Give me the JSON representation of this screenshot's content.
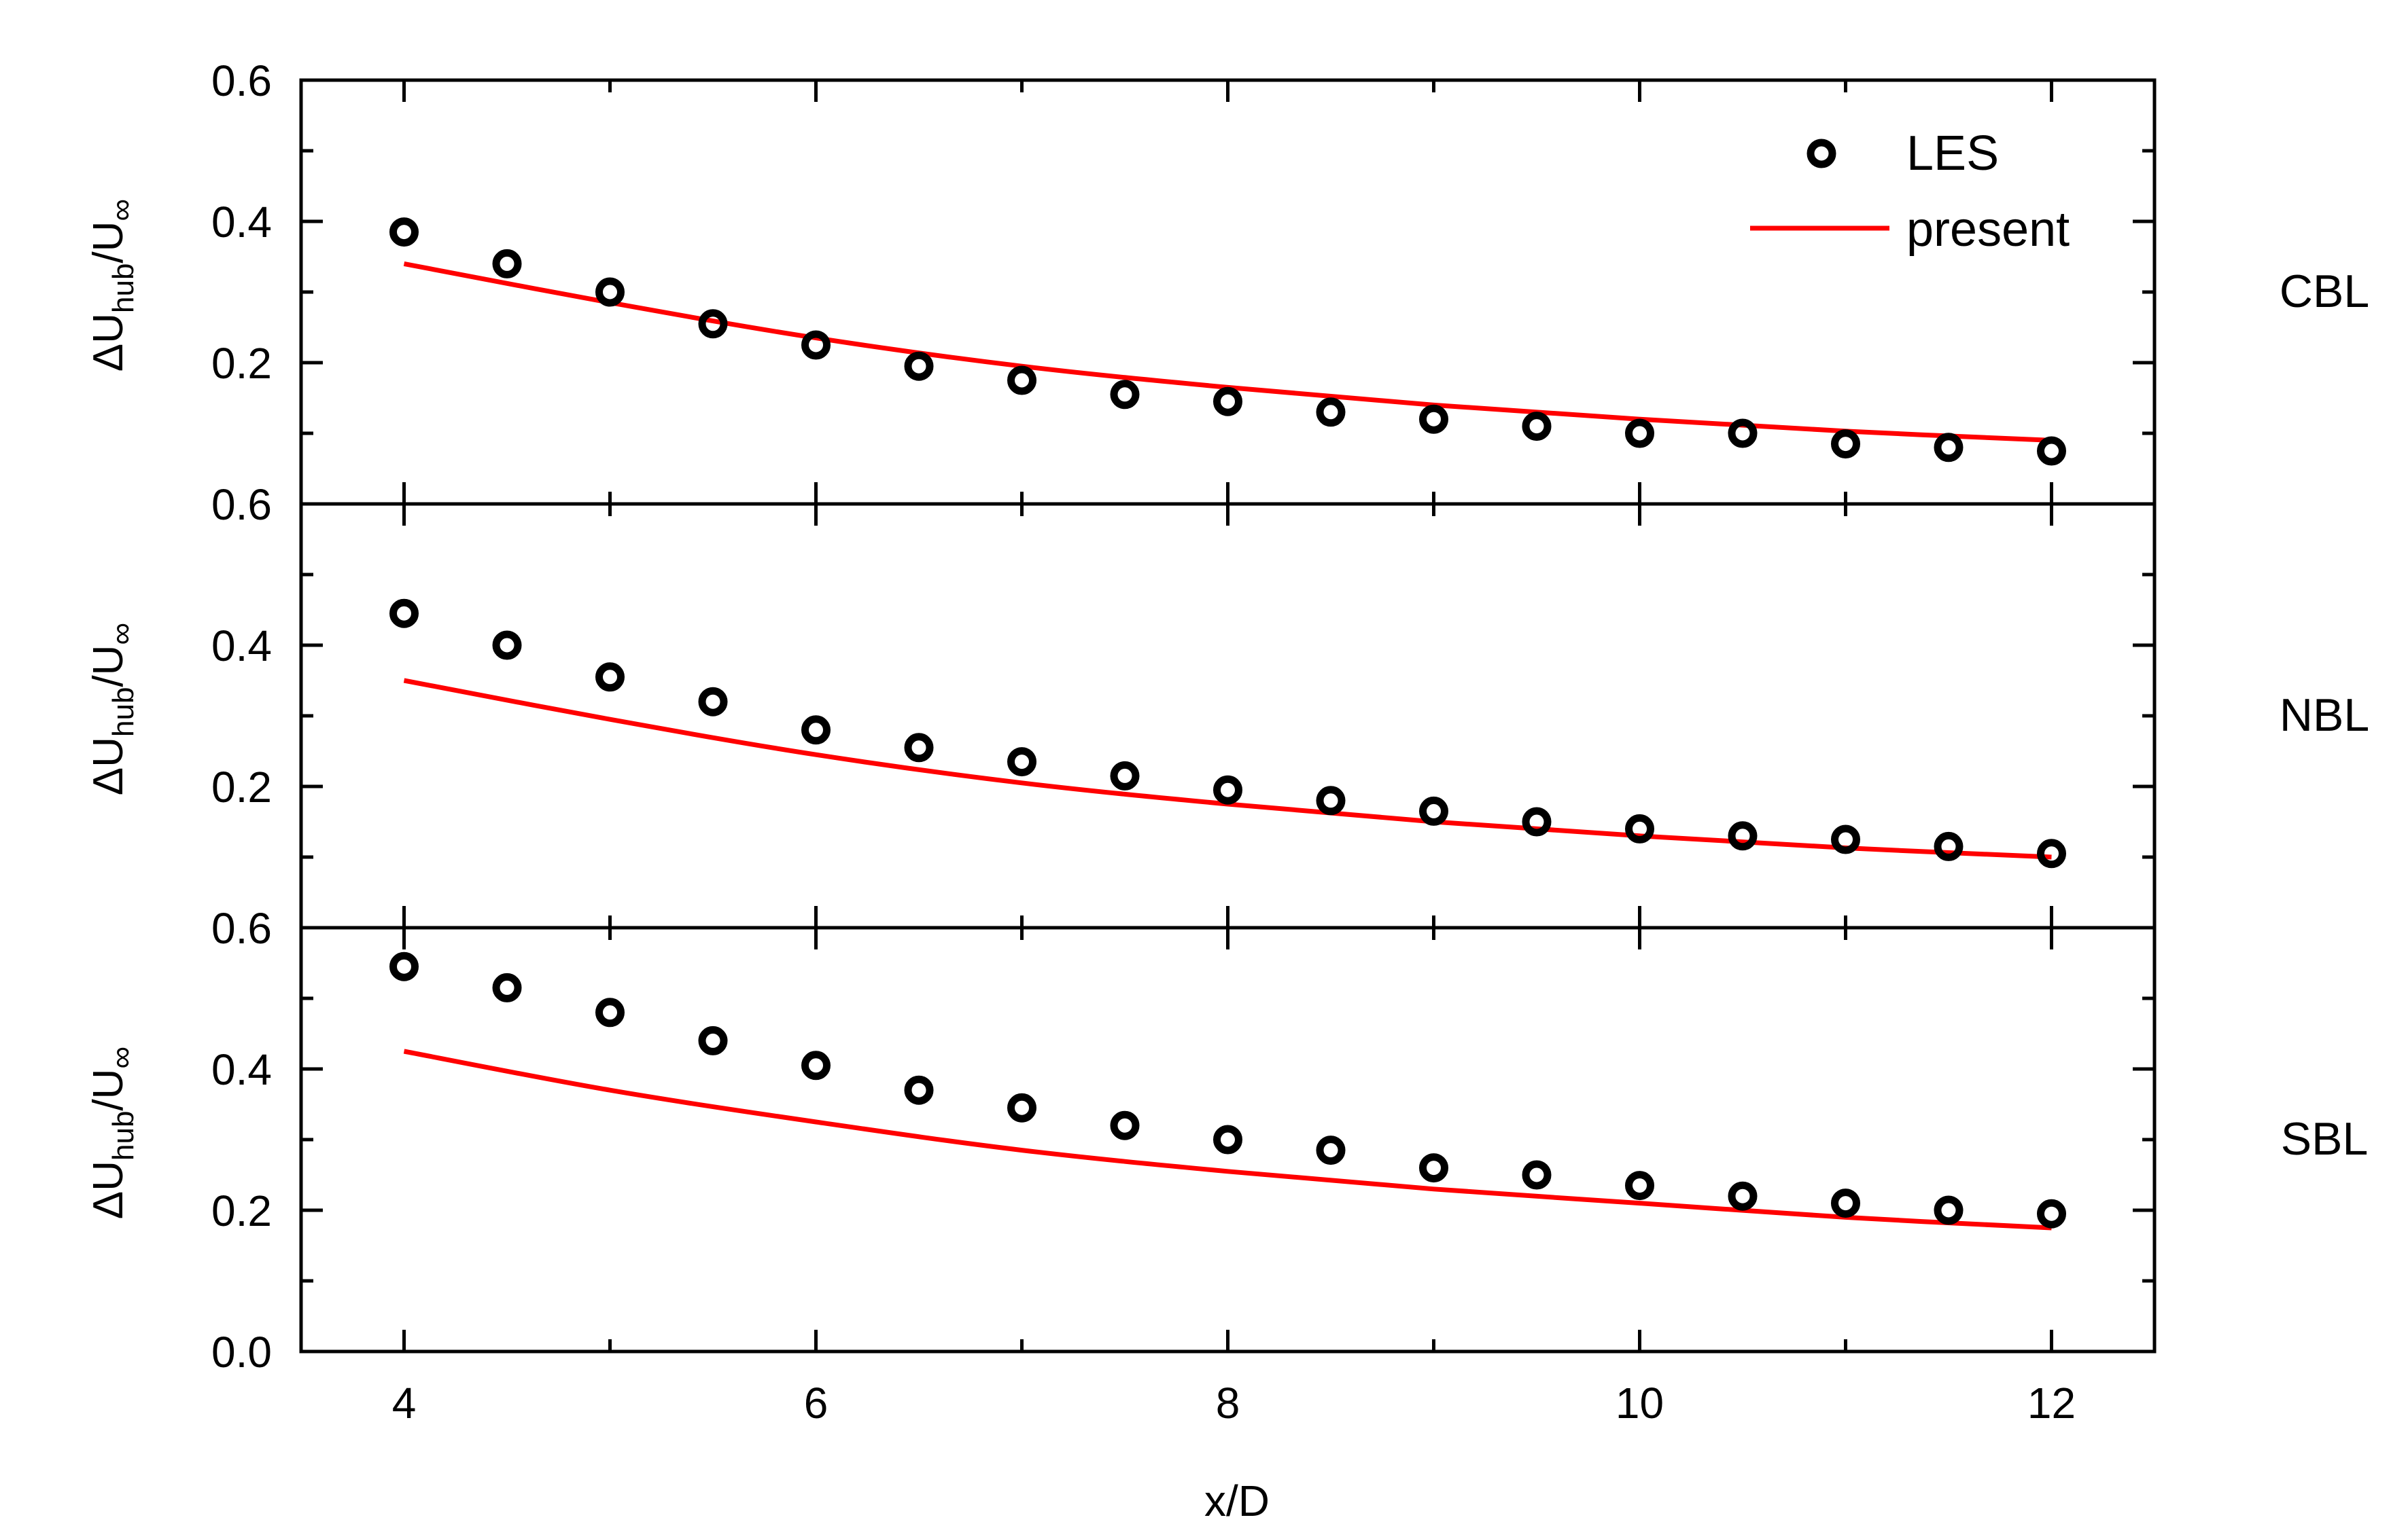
{
  "chart_data": {
    "type": "scatter",
    "xlabel": "x/D",
    "ylabel": {
      "delta": "Δ",
      "main": "U",
      "sub": "hub",
      "slash": "/U",
      "inf": "∞"
    },
    "xlim": [
      3.5,
      12.5
    ],
    "xticks": [
      4,
      6,
      8,
      10,
      12
    ],
    "x_minor_ticks": [
      5,
      7,
      9,
      11
    ],
    "legend": {
      "position": "top-right",
      "entries": [
        "LES",
        "present"
      ]
    },
    "colors": {
      "les": "#000000",
      "present": "#ff0000",
      "axes": "#000000"
    },
    "panels": [
      {
        "label": "CBL",
        "ylim": [
          0.0,
          0.6
        ],
        "yticks": [
          "0.2",
          "0.4",
          "0.6"
        ],
        "series": [
          {
            "name": "LES",
            "type": "scatter",
            "x": [
              4,
              4.5,
              5,
              5.5,
              6,
              6.5,
              7,
              7.5,
              8,
              8.5,
              9,
              9.5,
              10,
              10.5,
              11,
              11.5,
              12
            ],
            "y": [
              0.385,
              0.34,
              0.3,
              0.255,
              0.225,
              0.195,
              0.175,
              0.155,
              0.145,
              0.13,
              0.12,
              0.11,
              0.1,
              0.1,
              0.085,
              0.08,
              0.075
            ]
          },
          {
            "name": "present",
            "type": "line",
            "x": [
              4,
              5,
              6,
              7,
              8,
              9,
              10,
              11,
              12
            ],
            "y": [
              0.34,
              0.285,
              0.235,
              0.195,
              0.165,
              0.14,
              0.12,
              0.103,
              0.09
            ]
          }
        ]
      },
      {
        "label": "NBL",
        "ylim": [
          0.0,
          0.6
        ],
        "yticks": [
          "0.2",
          "0.4",
          "0.6"
        ],
        "series": [
          {
            "name": "LES",
            "type": "scatter",
            "x": [
              4,
              4.5,
              5,
              5.5,
              6,
              6.5,
              7,
              7.5,
              8,
              8.5,
              9,
              9.5,
              10,
              10.5,
              11,
              11.5,
              12
            ],
            "y": [
              0.445,
              0.4,
              0.355,
              0.32,
              0.28,
              0.255,
              0.235,
              0.215,
              0.195,
              0.18,
              0.165,
              0.15,
              0.14,
              0.13,
              0.125,
              0.115,
              0.105
            ]
          },
          {
            "name": "present",
            "type": "line",
            "x": [
              4,
              5,
              6,
              7,
              8,
              9,
              10,
              11,
              12
            ],
            "y": [
              0.35,
              0.295,
              0.245,
              0.205,
              0.175,
              0.15,
              0.13,
              0.113,
              0.1
            ]
          }
        ]
      },
      {
        "label": "SBL",
        "ylim": [
          0.0,
          0.6
        ],
        "yticks": [
          "0.0",
          "0.2",
          "0.4",
          "0.6"
        ],
        "series": [
          {
            "name": "LES",
            "type": "scatter",
            "x": [
              4,
              4.5,
              5,
              5.5,
              6,
              6.5,
              7,
              7.5,
              8,
              8.5,
              9,
              9.5,
              10,
              10.5,
              11,
              11.5,
              12
            ],
            "y": [
              0.545,
              0.515,
              0.48,
              0.44,
              0.405,
              0.37,
              0.345,
              0.32,
              0.3,
              0.285,
              0.26,
              0.25,
              0.235,
              0.22,
              0.21,
              0.2,
              0.195
            ]
          },
          {
            "name": "present",
            "type": "line",
            "x": [
              4,
              5,
              6,
              7,
              8,
              9,
              10,
              11,
              12
            ],
            "y": [
              0.425,
              0.37,
              0.325,
              0.285,
              0.255,
              0.23,
              0.21,
              0.19,
              0.175
            ]
          }
        ]
      }
    ]
  }
}
